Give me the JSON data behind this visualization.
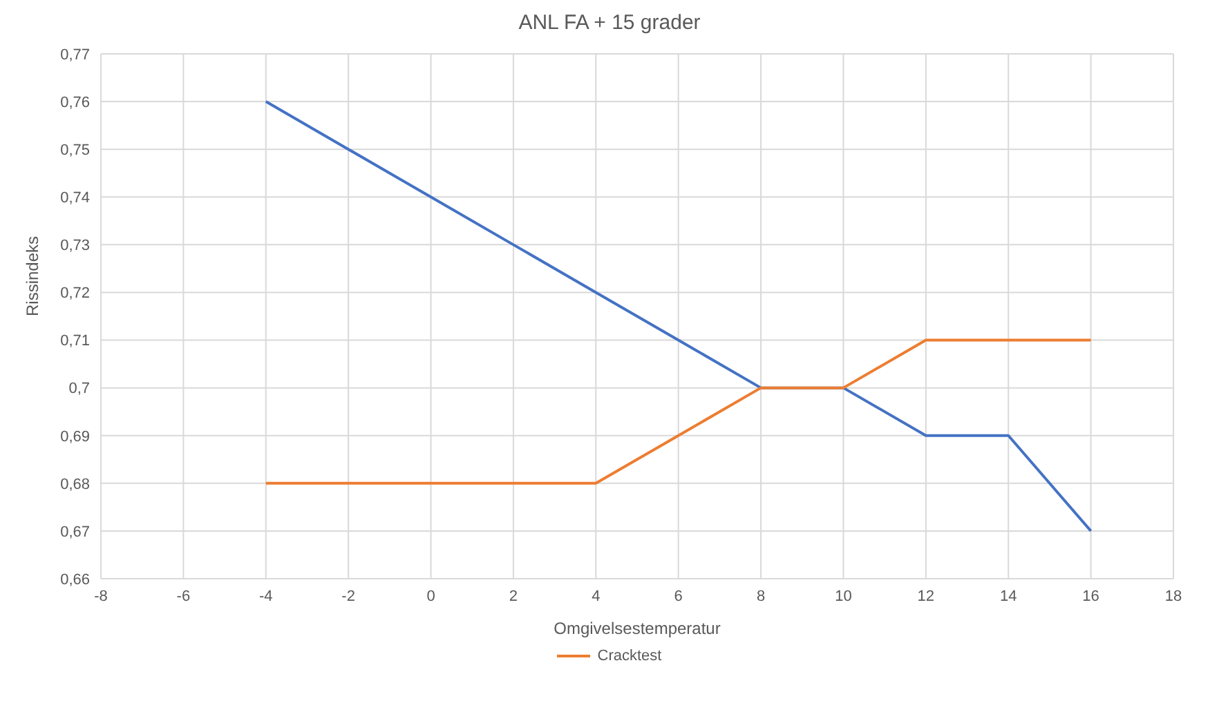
{
  "chart_data": {
    "type": "line",
    "title": "ANL FA + 15 grader",
    "xlabel": "Omgivelsestemperatur",
    "ylabel": "Rissindeks",
    "x": [
      -4,
      -2,
      0,
      2,
      4,
      6,
      8,
      10,
      12,
      14,
      16
    ],
    "series": [
      {
        "color": "#4472c4",
        "values": [
          0.76,
          0.75,
          0.74,
          0.73,
          0.72,
          0.71,
          0.7,
          0.7,
          0.69,
          0.69,
          0.67
        ]
      },
      {
        "name": "Cracktest",
        "color": "#ed7d31",
        "values": [
          0.68,
          0.68,
          0.68,
          0.68,
          0.68,
          0.69,
          0.7,
          0.7,
          0.71,
          0.71,
          0.71
        ]
      }
    ],
    "xlim": [
      -8,
      18
    ],
    "xticks": [
      -8,
      -6,
      -4,
      -2,
      0,
      2,
      4,
      6,
      8,
      10,
      12,
      14,
      16,
      18
    ],
    "ylim": [
      0.66,
      0.77
    ],
    "yticks": [
      {
        "value": 0.66,
        "label": "0,66"
      },
      {
        "value": 0.67,
        "label": "0,67"
      },
      {
        "value": 0.68,
        "label": "0,68"
      },
      {
        "value": 0.69,
        "label": "0,69"
      },
      {
        "value": 0.7,
        "label": "0,7"
      },
      {
        "value": 0.71,
        "label": "0,71"
      },
      {
        "value": 0.72,
        "label": "0,72"
      },
      {
        "value": 0.73,
        "label": "0,73"
      },
      {
        "value": 0.74,
        "label": "0,74"
      },
      {
        "value": 0.75,
        "label": "0,75"
      },
      {
        "value": 0.76,
        "label": "0,76"
      },
      {
        "value": 0.77,
        "label": "0,77"
      }
    ],
    "grid": true,
    "legend": "bottom",
    "marker": "none",
    "line_style": "solid"
  }
}
